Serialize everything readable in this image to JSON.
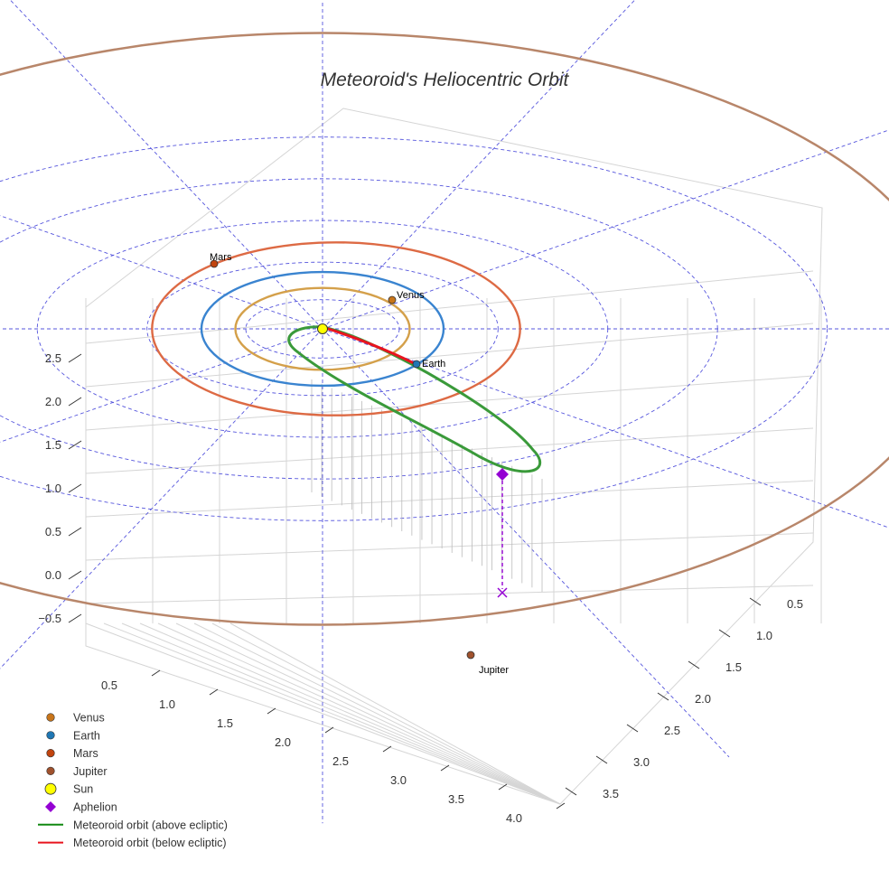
{
  "chart_data": {
    "type": "scatter3d",
    "title": "Meteoroid's Heliocentric Orbit",
    "x_ticks": [
      "0.5",
      "1.0",
      "1.5",
      "2.0",
      "2.5",
      "3.0",
      "3.5",
      "4.0"
    ],
    "y_ticks": [
      "0.5",
      "1.0",
      "1.5",
      "2.0",
      "2.5",
      "3.0",
      "3.5"
    ],
    "z_ticks": [
      "−0.5",
      "0.0",
      "0.5",
      "1.0",
      "1.5",
      "2.0",
      "2.5"
    ],
    "planets": [
      {
        "name": "Venus",
        "orbit_radius_au": 0.72,
        "color": "#c8963e",
        "orbit_color": "#d4a04a"
      },
      {
        "name": "Earth",
        "orbit_radius_au": 1.0,
        "color": "#1f77b4",
        "orbit_color": "#3a84d0"
      },
      {
        "name": "Mars",
        "orbit_radius_au": 1.52,
        "color": "#c1440e",
        "orbit_color": "#dd6a44"
      },
      {
        "name": "Jupiter",
        "orbit_radius_au": 5.2,
        "color": "#a0522d",
        "orbit_color": "#b8866a"
      }
    ],
    "sun": {
      "name": "Sun",
      "color": "#ffff00"
    },
    "aphelion": {
      "name": "Aphelion",
      "color": "#9400d3"
    },
    "series": [
      {
        "name": "Meteoroid orbit (above ecliptic)",
        "color": "#3a9a3a"
      },
      {
        "name": "Meteoroid orbit (below ecliptic)",
        "color": "#e8141e"
      }
    ],
    "legend": [
      {
        "label": "Venus",
        "symbol": "circle",
        "color": "#c8751a"
      },
      {
        "label": "Earth",
        "symbol": "circle",
        "color": "#1f77b4"
      },
      {
        "label": "Mars",
        "symbol": "circle",
        "color": "#c1440e"
      },
      {
        "label": "Jupiter",
        "symbol": "circle",
        "color": "#a0522d"
      },
      {
        "label": "Sun",
        "symbol": "circle-large",
        "color": "#ffff00"
      },
      {
        "label": "Aphelion",
        "symbol": "diamond",
        "color": "#9400d3"
      },
      {
        "label": "Meteoroid orbit (above ecliptic)",
        "symbol": "line",
        "color": "#118811"
      },
      {
        "label": "Meteoroid orbit (below ecliptic)",
        "symbol": "line",
        "color": "#e8141e"
      }
    ],
    "legend_position": "bottom-left",
    "grid": true
  }
}
